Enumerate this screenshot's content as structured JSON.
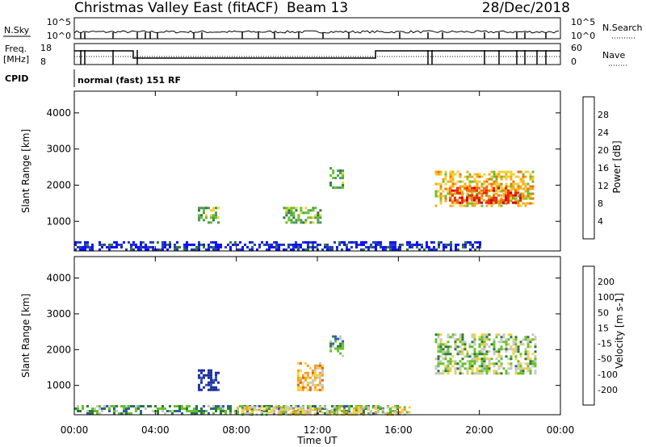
{
  "header": {
    "title": "Christmas Valley East (fitACF)",
    "beam": "Beam 13",
    "date": "28/Dec/2018"
  },
  "panels": {
    "nsky_label": "N.Sky",
    "nsky_ticks": [
      "10^5",
      "10^0"
    ],
    "nsearch_label": "N.Search",
    "nsearch_ticks": [
      "10^5",
      "10^0"
    ],
    "freq_label_1": "Freq.",
    "freq_label_2": "[MHz]",
    "freq_ticks": [
      "18",
      "8"
    ],
    "nave_label": "Nave",
    "nave_ticks": [
      "60",
      "0"
    ],
    "cpid_label": "CPID",
    "cpid_value": "normal (fast) 151 RF"
  },
  "colors": {
    "power": [
      "#0a0aff",
      "#1f3cb4",
      "#2e7a3a",
      "#4a9a55",
      "#66c02c",
      "#f0d232",
      "#f4a820",
      "#f07010",
      "#e82a10",
      "#d00000"
    ],
    "velocity": [
      "#1f2fa0",
      "#2e5cb0",
      "#2e7a3a",
      "#66c02c",
      "#c8c8c0",
      "#f4d040",
      "#f0a020",
      "#e86010",
      "#d80000"
    ]
  },
  "chart_data": [
    {
      "type": "heatmap",
      "name": "Power",
      "ylabel": "Slant Range [km]",
      "xlabel": "Time UT",
      "ylim": [
        180,
        4600
      ],
      "xlim": [
        0,
        24
      ],
      "x_ticks": [
        "00:00",
        "04:00",
        "08:00",
        "12:00",
        "16:00",
        "20:00",
        "00:00"
      ],
      "y_ticks": [
        1000,
        2000,
        3000,
        4000
      ],
      "colorbar_label": "Power [dB]",
      "colorbar_ticks": [
        "28",
        "24",
        "20",
        "16",
        "12",
        "8",
        "4"
      ],
      "regions": [
        {
          "t0": 6.1,
          "t1": 7.1,
          "r0": 950,
          "r1": 1400,
          "level": 4
        },
        {
          "t0": 10.3,
          "t1": 12.1,
          "r0": 950,
          "r1": 1400,
          "level": 4
        },
        {
          "t0": 12.6,
          "t1": 13.2,
          "r0": 1950,
          "r1": 2500,
          "level": 4
        },
        {
          "t0": 17.8,
          "t1": 22.7,
          "r0": 1400,
          "r1": 2400,
          "level": 6
        },
        {
          "t0": 18.5,
          "t1": 22.0,
          "r0": 1500,
          "r1": 1950,
          "level": 8
        },
        {
          "t0": 0,
          "t1": 20.0,
          "r0": 200,
          "r1": 450,
          "level": 1
        }
      ]
    },
    {
      "type": "heatmap",
      "name": "Velocity",
      "ylabel": "Slant Range [km]",
      "xlabel": "Time UT",
      "ylim": [
        180,
        4600
      ],
      "xlim": [
        0,
        24
      ],
      "x_ticks": [
        "00:00",
        "04:00",
        "08:00",
        "12:00",
        "16:00",
        "20:00",
        "00:00"
      ],
      "y_ticks": [
        1000,
        2000,
        3000,
        4000
      ],
      "colorbar_label": "Velocity [m s-1]",
      "colorbar_ticks": [
        "200",
        "100",
        "50",
        "15",
        "-15",
        "-50",
        "-100",
        "-200"
      ],
      "regions": [
        {
          "t0": 6.1,
          "t1": 7.1,
          "r0": 850,
          "r1": 1450,
          "level": 0
        },
        {
          "t0": 11.0,
          "t1": 12.3,
          "r0": 900,
          "r1": 1650,
          "level": 6
        },
        {
          "t0": 12.6,
          "t1": 13.3,
          "r0": 1800,
          "r1": 2400,
          "level": 3
        },
        {
          "t0": 17.8,
          "t1": 22.8,
          "r0": 1300,
          "r1": 2450,
          "level": 4
        },
        {
          "t0": 0,
          "t1": 16.0,
          "r0": 200,
          "r1": 450,
          "level": 3
        },
        {
          "t0": 8.0,
          "t1": 16.5,
          "r0": 200,
          "r1": 420,
          "level": 5
        }
      ]
    }
  ]
}
